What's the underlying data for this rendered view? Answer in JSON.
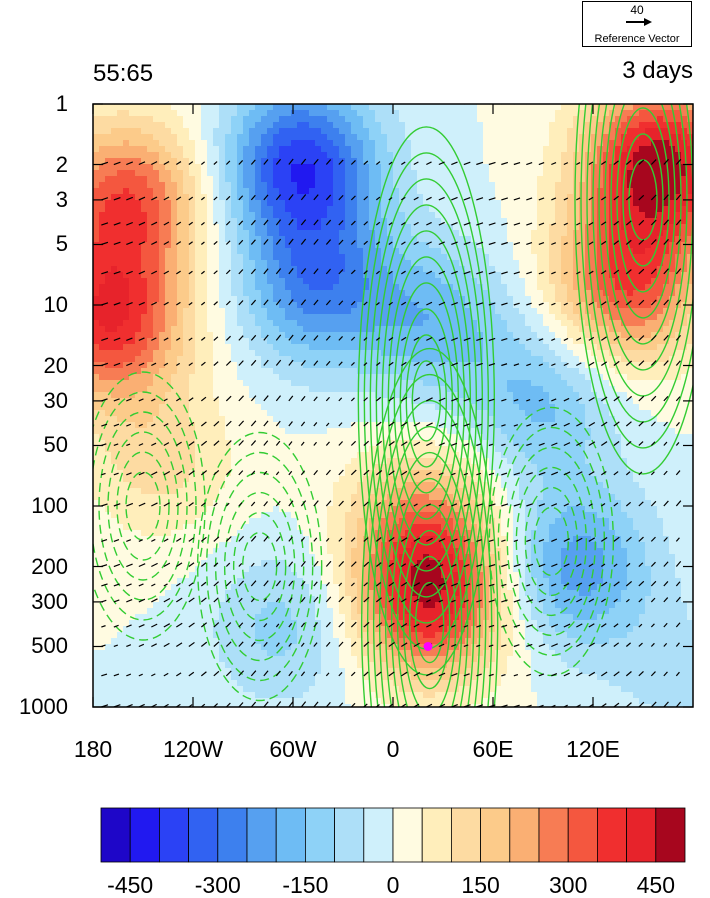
{
  "reference_vector": {
    "magnitude": "40",
    "label": "Reference Vector"
  },
  "titles": {
    "left": "55:65",
    "right": "3 days"
  },
  "colorbar": {
    "colors": [
      "#1e06c8",
      "#2119f0",
      "#2b42f5",
      "#3162f2",
      "#3d80ee",
      "#56a0f0",
      "#6ebcf4",
      "#8ed2f7",
      "#addff8",
      "#cff0fb",
      "#fffbe1",
      "#ffeebb",
      "#fddba2",
      "#fccb8a",
      "#faaf73",
      "#f77c54",
      "#f4573f",
      "#f02f2f",
      "#e7232b",
      "#a7061e"
    ],
    "tick_labels": [
      "-450",
      "-300",
      "-150",
      "0",
      "150",
      "300",
      "450"
    ]
  },
  "chart_data": {
    "type": "heatmap",
    "description_fields": "pressure-longitude cross section: shading, contours and wind vectors",
    "title_left": "55:65",
    "title_right": "3 days",
    "xaxis": {
      "ticks": [
        -180,
        -120,
        -60,
        0,
        60,
        120
      ],
      "tick_labels": [
        "180",
        "120W",
        "60W",
        "0",
        "60E",
        "120E"
      ],
      "range": [
        -180,
        180
      ]
    },
    "yaxis": {
      "scale": "log",
      "reversed": true,
      "ticks": [
        1,
        2,
        3,
        5,
        10,
        20,
        30,
        50,
        100,
        200,
        300,
        500,
        1000
      ],
      "tick_labels": [
        "1",
        "2",
        "3",
        "5",
        "10",
        "20",
        "30",
        "50",
        "100",
        "200",
        "300",
        "500",
        "1000"
      ],
      "range": [
        1,
        1000
      ]
    },
    "shading_levels": [
      -500,
      -450,
      -400,
      -350,
      -300,
      -250,
      -200,
      -150,
      -100,
      -50,
      0,
      50,
      100,
      150,
      200,
      250,
      300,
      350,
      400,
      450,
      500
    ],
    "shading_features": [
      {
        "lon": -170,
        "p": 12,
        "value": 380
      },
      {
        "lon": -160,
        "p": 3,
        "value": 330
      },
      {
        "lon": -55,
        "p": 2,
        "value": -380
      },
      {
        "lon": -45,
        "p": 8,
        "value": -260
      },
      {
        "lon": -65,
        "p": 400,
        "value": -120
      },
      {
        "lon": -140,
        "p": 60,
        "value": 120
      },
      {
        "lon": 22,
        "p": 300,
        "value": 390
      },
      {
        "lon": 18,
        "p": 120,
        "value": 210
      },
      {
        "lon": 25,
        "p": 12,
        "value": -170
      },
      {
        "lon": 110,
        "p": 200,
        "value": -230
      },
      {
        "lon": 160,
        "p": 2,
        "value": 480
      },
      {
        "lon": 140,
        "p": 8,
        "value": 330
      },
      {
        "lon": 90,
        "p": 30,
        "value": -160
      },
      {
        "lon": 170,
        "p": 700,
        "value": -60
      }
    ],
    "contours": {
      "color": "#33cc33",
      "dashed_negative": true,
      "centers": [
        {
          "lon": 22,
          "p": 380,
          "sign": "positive"
        },
        {
          "lon": 20,
          "p": 30,
          "sign": "positive"
        },
        {
          "lon": -80,
          "p": 200,
          "sign": "negative"
        },
        {
          "lon": -150,
          "p": 100,
          "sign": "negative"
        },
        {
          "lon": 95,
          "p": 150,
          "sign": "negative"
        },
        {
          "lon": 150,
          "p": 3,
          "sign": "positive"
        }
      ]
    },
    "vectors": {
      "reference_magnitude": 40
    },
    "marker": {
      "lon": 21,
      "p": 500,
      "color": "#ff00ff"
    },
    "colorbar_range": [
      -500,
      500
    ]
  }
}
